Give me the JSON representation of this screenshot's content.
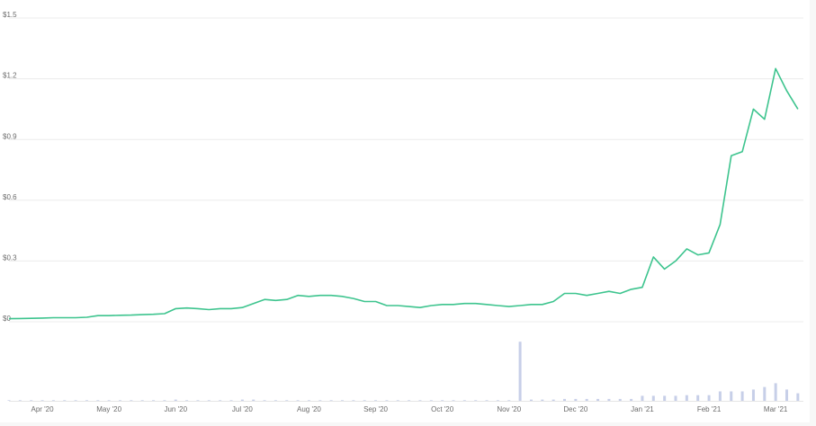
{
  "chart_data": {
    "type": "line",
    "categories": [
      null,
      null,
      null,
      "Apr '20",
      null,
      null,
      null,
      null,
      null,
      "May '20",
      null,
      null,
      null,
      null,
      null,
      "Jun '20",
      null,
      null,
      null,
      null,
      null,
      "Jul '20",
      null,
      null,
      null,
      null,
      null,
      "Aug '20",
      null,
      null,
      null,
      null,
      null,
      "Sep '20",
      null,
      null,
      null,
      null,
      null,
      "Oct '20",
      null,
      null,
      null,
      null,
      null,
      "Nov '20",
      null,
      null,
      null,
      null,
      null,
      "Dec '20",
      null,
      null,
      null,
      null,
      null,
      "Jan '21",
      null,
      null,
      null,
      null,
      null,
      "Feb '21",
      null,
      null,
      null,
      null,
      null,
      "Mar '21",
      null,
      null
    ],
    "series": [
      {
        "color": "#3dc48e",
        "values": [
          0.015,
          0.016,
          0.017,
          0.018,
          0.02,
          0.02,
          0.02,
          0.022,
          0.03,
          0.03,
          0.032,
          0.033,
          0.035,
          0.037,
          0.04,
          0.065,
          0.068,
          0.065,
          0.06,
          0.065,
          0.065,
          0.07,
          0.09,
          0.11,
          0.105,
          0.11,
          0.13,
          0.125,
          0.13,
          0.13,
          0.125,
          0.115,
          0.1,
          0.1,
          0.08,
          0.08,
          0.075,
          0.07,
          0.08,
          0.085,
          0.085,
          0.09,
          0.09,
          0.085,
          0.08,
          0.075,
          0.08,
          0.085,
          0.085,
          0.1,
          0.14,
          0.14,
          0.13,
          0.14,
          0.15,
          0.14,
          0.16,
          0.17,
          0.32,
          0.26,
          0.3,
          0.36,
          0.33,
          0.34,
          0.48,
          0.82,
          0.84,
          1.05,
          1.0,
          1.25,
          1.14,
          1.05
        ]
      },
      {
        "color": "#c7cfe8",
        "axis": "y2",
        "values": [
          1,
          1,
          1,
          1,
          1,
          1,
          1,
          1,
          1,
          1,
          1,
          1,
          1,
          1,
          1,
          2,
          1,
          1,
          1,
          1,
          1,
          2,
          2,
          1,
          1,
          1,
          1,
          1,
          1,
          1,
          1,
          1,
          1,
          1,
          1,
          1,
          1,
          1,
          1,
          1,
          1,
          1,
          1,
          1,
          1,
          1,
          94,
          2,
          2,
          2,
          3,
          3,
          3,
          3,
          3,
          3,
          3,
          8,
          8,
          8,
          8,
          9,
          9,
          9,
          15,
          15,
          15,
          18,
          22,
          28,
          18,
          12
        ]
      }
    ],
    "ylim": [
      0,
      1.5
    ],
    "yticks": [
      {
        "value": 0,
        "label": "$0"
      },
      {
        "value": 0.3,
        "label": "$0.3"
      },
      {
        "value": 0.6,
        "label": "$0.6"
      },
      {
        "value": 0.9,
        "label": "$0.9"
      },
      {
        "value": 1.2,
        "label": "$1.2"
      },
      {
        "value": 1.5,
        "label": "$1.5"
      }
    ],
    "y2lim": [
      0,
      100
    ],
    "grid": true
  }
}
